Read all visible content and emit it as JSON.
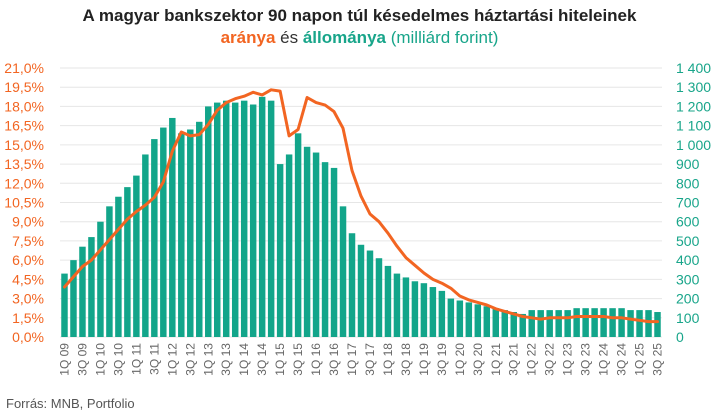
{
  "title": {
    "line1": "A magyar bankszektor 90 napon túl késedelmes háztartási hiteleinek",
    "line2_part1": "aránya",
    "line2_part2": " és ",
    "line2_part3": "állománya",
    "line2_part4": " (milliárd forint)"
  },
  "source": "Forrás: MNB, Portfolio",
  "colors": {
    "line": "#f26522",
    "bars": "#12a58a",
    "left_axis": "#f26522",
    "right_axis": "#18a58a",
    "grid": "#e6e6e6"
  },
  "chart_data": {
    "type": "bar",
    "x_tick_labels": [
      "1Q 09",
      "3Q 09",
      "1Q 10",
      "3Q 10",
      "1Q 11",
      "3Q 11",
      "1Q 12",
      "3Q 12",
      "1Q 13",
      "3Q 13",
      "1Q 14",
      "3Q 14",
      "1Q 15",
      "3Q 15",
      "1Q 16",
      "3Q 16",
      "1Q 17",
      "3Q 17",
      "1Q 18",
      "3Q 18",
      "1Q 19",
      "3Q 19",
      "1Q 20",
      "3Q 20",
      "1Q 21",
      "3Q 21",
      "1Q 22",
      "3Q 22",
      "1Q 23",
      "3Q 23",
      "1Q 24",
      "3Q 24",
      "1Q 25",
      "3Q 25"
    ],
    "y_left": {
      "ticks": [
        "0,0%",
        "1,5%",
        "3,0%",
        "4,5%",
        "6,0%",
        "7,5%",
        "9,0%",
        "10,5%",
        "12,0%",
        "13,5%",
        "15,0%",
        "16,5%",
        "18,0%",
        "19,5%",
        "21,0%"
      ],
      "ylim": [
        0,
        21
      ]
    },
    "y_right": {
      "ticks": [
        "0",
        "100",
        "200",
        "300",
        "400",
        "500",
        "600",
        "700",
        "800",
        "900",
        "1 000",
        "1 100",
        "1 200",
        "1 300",
        "1 400"
      ],
      "ylim": [
        0,
        1400
      ]
    },
    "series": [
      {
        "type": "bar",
        "axis": "right",
        "values": [
          330,
          400,
          470,
          520,
          600,
          680,
          730,
          780,
          840,
          950,
          1030,
          1090,
          1140,
          1060,
          1080,
          1120,
          1200,
          1220,
          1230,
          1220,
          1230,
          1210,
          1250,
          1230,
          900,
          950,
          1060,
          990,
          960,
          910,
          880,
          680,
          540,
          480,
          450,
          410,
          370,
          330,
          310,
          290,
          280,
          260,
          240,
          200,
          190,
          180,
          170,
          160,
          150,
          140,
          130,
          120,
          140,
          140,
          140,
          140,
          140,
          150,
          150,
          150,
          150,
          150,
          150,
          140,
          140,
          140,
          130
        ]
      },
      {
        "type": "line",
        "axis": "left",
        "values": [
          3.9,
          4.7,
          5.5,
          6.0,
          6.8,
          7.6,
          8.4,
          9.2,
          9.8,
          10.3,
          10.9,
          12.1,
          14.5,
          16.0,
          15.7,
          15.8,
          16.6,
          17.7,
          18.3,
          18.6,
          18.8,
          19.1,
          18.9,
          19.3,
          19.2,
          15.7,
          16.2,
          18.7,
          18.3,
          18.1,
          17.6,
          16.3,
          13.0,
          11.0,
          9.6,
          9.0,
          8.1,
          7.1,
          6.2,
          5.6,
          5.0,
          4.5,
          4.2,
          3.8,
          3.2,
          2.9,
          2.7,
          2.5,
          2.2,
          2.0,
          1.8,
          1.6,
          1.5,
          1.4,
          1.5,
          1.5,
          1.5,
          1.6,
          1.6,
          1.6,
          1.6,
          1.5,
          1.5,
          1.4,
          1.3,
          1.2,
          1.2
        ]
      }
    ]
  }
}
